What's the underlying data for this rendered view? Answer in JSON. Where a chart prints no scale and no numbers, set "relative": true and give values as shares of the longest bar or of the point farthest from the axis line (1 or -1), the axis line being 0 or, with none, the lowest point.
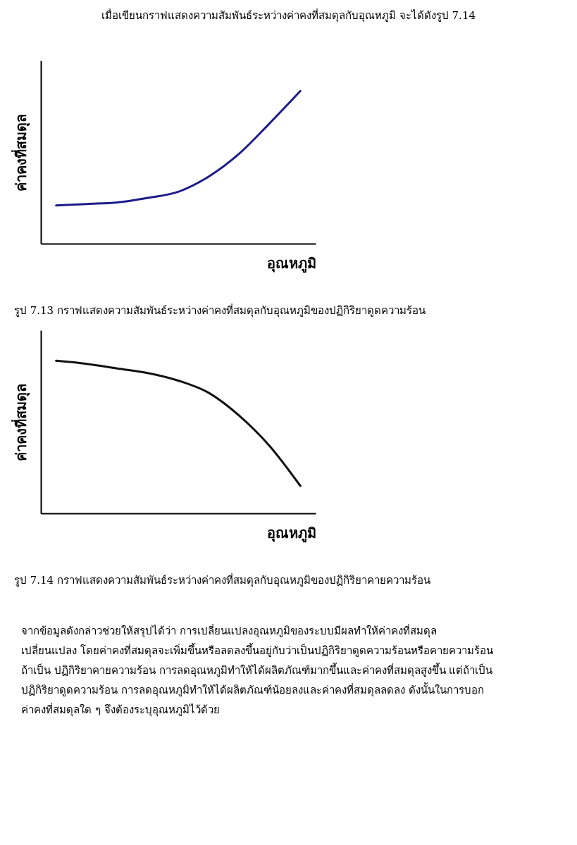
{
  "chart_data": [
    {
      "type": "line",
      "relative": true,
      "title": "รูป 7.13 กราฟแสดงความสัมพันธ์ระหว่างค่าคงที่สมดุลกับอุณหภูมิของปฏิกิริยาดูดความร้อน",
      "xlabel": "อุณหภูมิ",
      "ylabel": "ค่าคงที่สมดุล",
      "annotations": [
        "เมื่อเขียนกราฟแสดงความสัมพันธ์ระหว่างค่าคงที่สมดุลกับอุณหภูมิ จะได้ดังรูป 7.14"
      ],
      "categories": [
        null,
        null,
        null,
        null,
        null,
        null,
        null,
        null,
        null
      ],
      "series": [
        {
          "color": "#1c1c8c",
          "values": [
            0.25,
            0.26,
            0.27,
            0.3,
            0.34,
            0.44,
            0.59,
            0.79,
            1
          ]
        }
      ]
    },
    {
      "type": "line",
      "relative": true,
      "title": "รูป 7.14 กราฟแสดงความสัมพันธ์ระหว่างค่าคงที่สมดุลกับอุณหภูมิของปฏิกิริยาคายความร้อน",
      "xlabel": "อุณหภูมิ",
      "ylabel": "ค่าคงที่สมดุล",
      "annotations": [
        "จากข้อมูลดังกล่าวช่วยให้สรุปได้ว่า การเปลี่ยนแปลงอุณหภูมิของระบบมีผลทำให้ค่าคงที่สมดุล",
        "เปลี่ยนแปลง โดยค่าคงที่สมดุลจะเพิ่มขึ้นหรือลดลงขึ้นอยู่กับว่าเป็นปฏิกิริยาดูดความร้อนหรือคายความร้อน",
        "ถ้าเป็น ปฏิกิริยาคายความร้อน การลดอุณหภูมิทำให้ได้ผลิตภัณฑ์มากขึ้นและค่าคงที่สมดุลสูงขึ้น แต่ถ้าเป็น",
        "ปฏิกิริยาดูดความร้อน การลดอุณหภูมิทำให้ได้ผลิตภัณฑ์น้อยลงและค่าคงที่สมดุลลดลง ดังนั้นในการบอก",
        "ค่าคงที่สมดุลใด ๆ จึงต้องระบุอุณหภูมิไว้ด้วย"
      ],
      "categories": [
        null,
        null,
        null,
        null,
        null,
        null,
        null,
        null,
        null
      ],
      "series": [
        {
          "color": "#111111",
          "values": [
            1,
            0.98,
            0.95,
            0.92,
            0.87,
            0.79,
            0.64,
            0.44,
            0.18
          ]
        }
      ]
    }
  ]
}
